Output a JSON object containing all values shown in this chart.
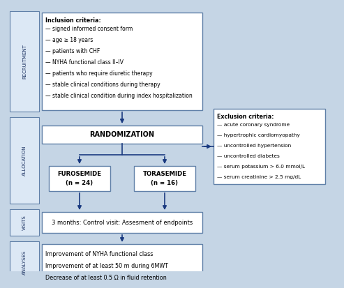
{
  "bg_color": "#c5d5e5",
  "box_face_color": "#ffffff",
  "box_edge_color": "#6080a8",
  "label_face_color": "#dce8f5",
  "label_edge_color": "#6080a8",
  "arrow_color": "#1a3a80",
  "text_color": "#000000",
  "label_text_color": "#1a3060",
  "side_labels": [
    "RECRUITMENT",
    "ALLOCATION",
    "VISITS",
    "ANALYSES"
  ],
  "inclusion_title": "Inclusion criteria:",
  "inclusion_items": [
    "— signed informed consent form",
    "— age ≥ 18 years",
    "— patients with CHF",
    "— NYHA functional class II–IV",
    "— patients who require diuretic therapy",
    "— stable clinical conditions during therapy",
    "— stable clinical condition during index hospitalization"
  ],
  "exclusion_title": "Exclusion criteria:",
  "exclusion_items": [
    "— acute coronary syndrome",
    "— hypertrophic cardiomyopathy",
    "— uncontrolled hypertension",
    "— uncontrolled diabetes",
    "— serum potassium > 6.0 mmol/L",
    "— serum creatinine > 2.5 mg/dL"
  ],
  "randomization_text": "RANDOMIZATION",
  "furosemide_text": "FUROSEMIDE\n(n = 24)",
  "torasemide_text": "TORASEMIDE\n(n = 16)",
  "visits_text": "3 months: Control visit: Assesment of endpoints",
  "analyses_text": "Improvement of NYHA functional class\nImprovement of at least 50 m during 6MWT\nDecrease of at least 0.5 Ω in fluid retention"
}
